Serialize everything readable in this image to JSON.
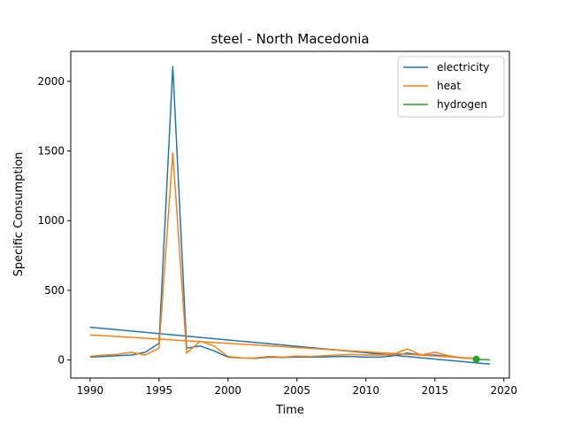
{
  "chart_data": {
    "type": "line",
    "title": "steel - North Macedonia",
    "xlabel": "Time",
    "ylabel": "Specific Consumption",
    "xlim": [
      1988.6,
      2020.4
    ],
    "ylim": [
      -130,
      2215
    ],
    "xticks": [
      1990,
      1995,
      2000,
      2005,
      2010,
      2015,
      2020
    ],
    "yticks": [
      0,
      500,
      1000,
      1500,
      2000
    ],
    "grid": false,
    "legend_position": "top-right",
    "series": [
      {
        "name": "electricity",
        "color": "#1f77b4",
        "x": [
          1990,
          1991,
          1992,
          1993,
          1994,
          1995,
          1996,
          1997,
          1998,
          1999,
          2000,
          2001,
          2002,
          2003,
          2004,
          2005,
          2006,
          2007,
          2008,
          2009,
          2010,
          2011,
          2012,
          2013,
          2014,
          2015,
          2016,
          2017,
          2018
        ],
        "y": [
          20,
          25,
          30,
          35,
          55,
          120,
          2105,
          85,
          100,
          65,
          20,
          15,
          12,
          20,
          18,
          22,
          20,
          22,
          25,
          25,
          20,
          20,
          30,
          50,
          35,
          35,
          25,
          15,
          10
        ]
      },
      {
        "name": "electricity-trend",
        "color": "#1f77b4",
        "x": [
          1990,
          2019
        ],
        "y": [
          235,
          -30
        ]
      },
      {
        "name": "heat",
        "color": "#ff7f0e",
        "x": [
          1990,
          1991,
          1992,
          1993,
          1994,
          1995,
          1996,
          1997,
          1998,
          1999,
          2000,
          2001,
          2002,
          2003,
          2004,
          2005,
          2006,
          2007,
          2008,
          2009,
          2010,
          2011,
          2012,
          2013,
          2014,
          2015,
          2016,
          2017,
          2018
        ],
        "y": [
          25,
          35,
          40,
          55,
          35,
          85,
          1490,
          50,
          135,
          100,
          25,
          15,
          15,
          25,
          20,
          28,
          25,
          30,
          35,
          40,
          35,
          35,
          40,
          80,
          35,
          55,
          30,
          15,
          15
        ]
      },
      {
        "name": "heat-trend",
        "color": "#ff7f0e",
        "x": [
          1990,
          2018
        ],
        "y": [
          180,
          10
        ]
      },
      {
        "name": "hydrogen",
        "color": "#2ca02c",
        "x": [
          2018,
          2019
        ],
        "y": [
          5,
          0
        ],
        "marker_x": 2018,
        "marker_y": 5
      }
    ],
    "legend_entries": [
      {
        "label": "electricity",
        "color": "#1f77b4"
      },
      {
        "label": "heat",
        "color": "#ff7f0e"
      },
      {
        "label": "hydrogen",
        "color": "#2ca02c"
      }
    ]
  }
}
